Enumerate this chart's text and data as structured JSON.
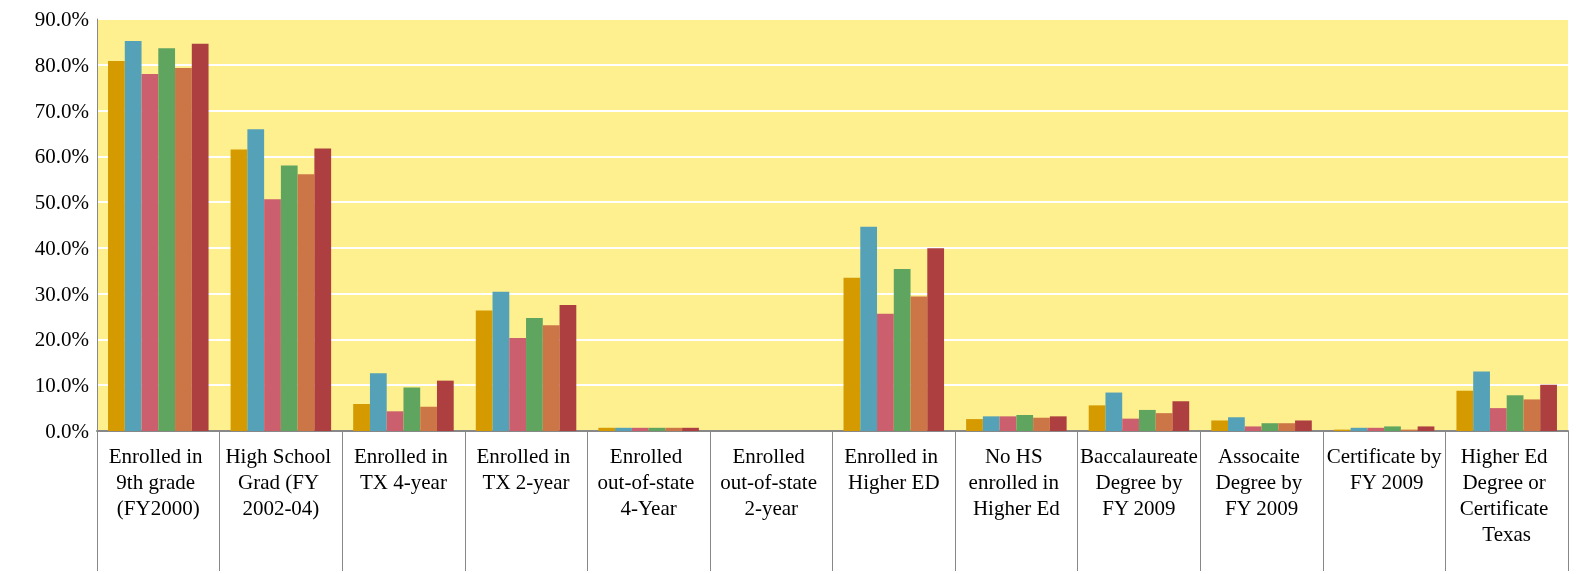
{
  "chart_data": {
    "type": "bar",
    "categories": [
      "Enrolled in 9th grade (FY2000)",
      "High School Grad (FY 2002-04)",
      "Enrolled in TX 4-year",
      "Enrolled in TX 2-year",
      "Enrolled out-of-state 4-Year",
      "Enrolled out-of-state 2-year",
      "Enrolled in Higher ED",
      "No HS enrolled in Higher Ed",
      "Baccalaureate Degree by FY 2009",
      "Assocaite Degree by FY 2009",
      "Certificate by FY 2009",
      "Higher Ed Degree or Certificate Texas"
    ],
    "series": [
      {
        "color": "#d49a00",
        "values": [
          80.8,
          61.5,
          5.9,
          26.3,
          0.7,
          0,
          33.5,
          2.6,
          5.6,
          2.3,
          0.3,
          8.8
        ]
      },
      {
        "color": "#55a1b7",
        "values": [
          85.2,
          65.9,
          12.6,
          30.4,
          0.7,
          0,
          44.6,
          3.2,
          8.4,
          3.0,
          0.7,
          13.0
        ]
      },
      {
        "color": "#cb5f6e",
        "values": [
          78.0,
          50.6,
          4.3,
          20.3,
          0.7,
          0,
          25.6,
          3.2,
          2.7,
          1.0,
          0.7,
          5.0
        ]
      },
      {
        "color": "#5fa45f",
        "values": [
          83.6,
          58.0,
          9.5,
          24.7,
          0.7,
          0,
          35.4,
          3.5,
          4.6,
          1.7,
          1.0,
          7.8
        ]
      },
      {
        "color": "#cc7648",
        "values": [
          79.3,
          56.1,
          5.3,
          23.1,
          0.7,
          0,
          29.4,
          2.9,
          3.9,
          1.7,
          0.3,
          6.9
        ]
      },
      {
        "color": "#ae3f40",
        "values": [
          84.6,
          61.7,
          11.0,
          27.5,
          0.7,
          0,
          39.9,
          3.2,
          6.5,
          2.3,
          1.0,
          10.1
        ]
      }
    ],
    "ylim": [
      0,
      90
    ],
    "yticks": [
      {
        "value": 0,
        "label": "0.0%"
      },
      {
        "value": 10,
        "label": "10.0%"
      },
      {
        "value": 20,
        "label": "20.0%"
      },
      {
        "value": 30,
        "label": "30.0%"
      },
      {
        "value": 40,
        "label": "40.0%"
      },
      {
        "value": 50,
        "label": "50.0%"
      },
      {
        "value": 60,
        "label": "60.0%"
      },
      {
        "value": 70,
        "label": "70.0%"
      },
      {
        "value": 80,
        "label": "80.0%"
      },
      {
        "value": 90,
        "label": "90.0%"
      }
    ],
    "grid": "y"
  }
}
